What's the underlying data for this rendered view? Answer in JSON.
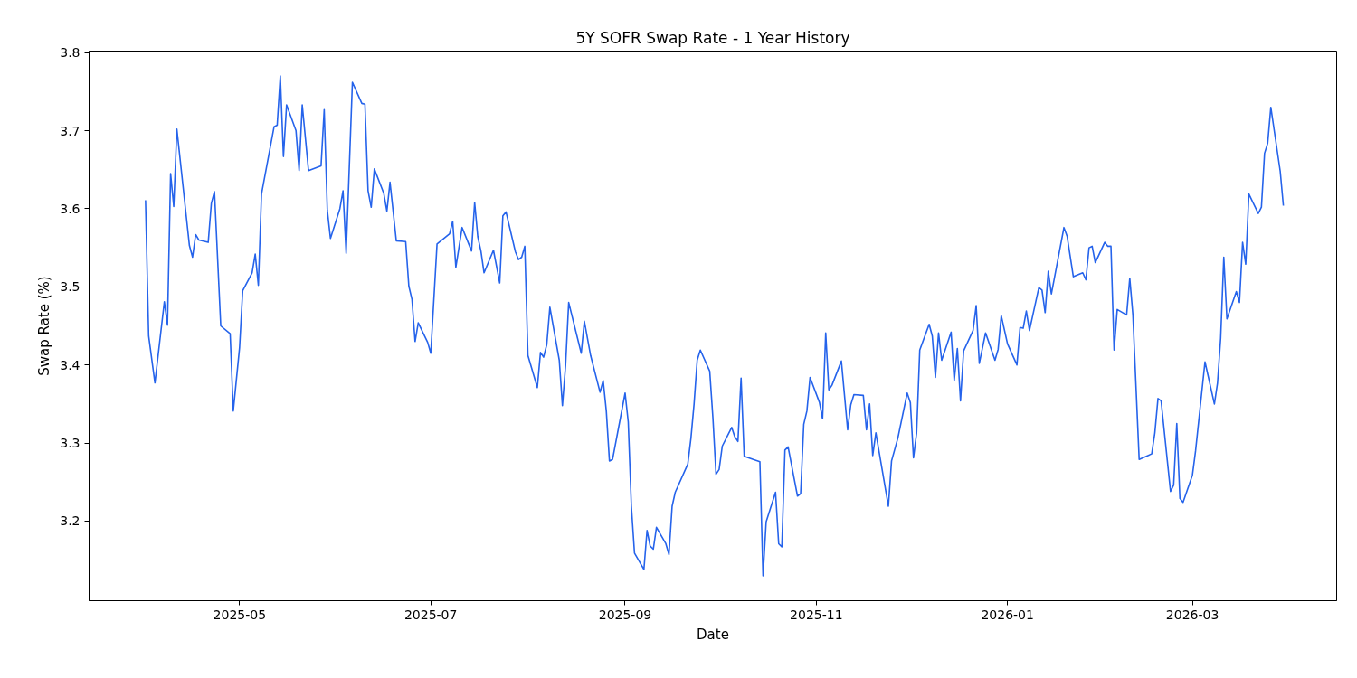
{
  "chart_data": {
    "type": "line",
    "title": "5Y SOFR Swap Rate - 1 Year History",
    "xlabel": "Date",
    "ylabel": "Swap Rate (%)",
    "xlim": [
      "2025-03-14",
      "2026-04-16"
    ],
    "ylim": [
      3.098,
      3.802
    ],
    "xticks": [
      "2025-05",
      "2025-07",
      "2025-09",
      "2025-11",
      "2026-01",
      "2026-03"
    ],
    "yticks": [
      3.2,
      3.3,
      3.4,
      3.5,
      3.6,
      3.7,
      3.8
    ],
    "grid": false,
    "marker": "none",
    "line_style": "solid",
    "series": [
      {
        "color": "#2563eb",
        "x": [
          "2025-04-01",
          "2025-04-02",
          "2025-04-04",
          "2025-04-07",
          "2025-04-08",
          "2025-04-09",
          "2025-04-10",
          "2025-04-11",
          "2025-04-15",
          "2025-04-16",
          "2025-04-17",
          "2025-04-18",
          "2025-04-21",
          "2025-04-22",
          "2025-04-23",
          "2025-04-25",
          "2025-04-28",
          "2025-04-29",
          "2025-05-01",
          "2025-05-02",
          "2025-05-05",
          "2025-05-06",
          "2025-05-07",
          "2025-05-08",
          "2025-05-12",
          "2025-05-13",
          "2025-05-14",
          "2025-05-15",
          "2025-05-16",
          "2025-05-19",
          "2025-05-20",
          "2025-05-21",
          "2025-05-23",
          "2025-05-27",
          "2025-05-28",
          "2025-05-29",
          "2025-05-30",
          "2025-06-02",
          "2025-06-03",
          "2025-06-04",
          "2025-06-06",
          "2025-06-09",
          "2025-06-10",
          "2025-06-11",
          "2025-06-12",
          "2025-06-13",
          "2025-06-16",
          "2025-06-17",
          "2025-06-18",
          "2025-06-20",
          "2025-06-23",
          "2025-06-24",
          "2025-06-25",
          "2025-06-26",
          "2025-06-27",
          "2025-06-30",
          "2025-07-01",
          "2025-07-03",
          "2025-07-07",
          "2025-07-08",
          "2025-07-09",
          "2025-07-11",
          "2025-07-14",
          "2025-07-15",
          "2025-07-16",
          "2025-07-17",
          "2025-07-18",
          "2025-07-21",
          "2025-07-23",
          "2025-07-24",
          "2025-07-25",
          "2025-07-28",
          "2025-07-29",
          "2025-07-30",
          "2025-07-31",
          "2025-08-01",
          "2025-08-04",
          "2025-08-05",
          "2025-08-06",
          "2025-08-07",
          "2025-08-08",
          "2025-08-11",
          "2025-08-12",
          "2025-08-13",
          "2025-08-14",
          "2025-08-18",
          "2025-08-19",
          "2025-08-21",
          "2025-08-24",
          "2025-08-25",
          "2025-08-26",
          "2025-08-27",
          "2025-08-28",
          "2025-09-01",
          "2025-09-02",
          "2025-09-03",
          "2025-09-04",
          "2025-09-07",
          "2025-09-08",
          "2025-09-09",
          "2025-09-10",
          "2025-09-11",
          "2025-09-14",
          "2025-09-15",
          "2025-09-16",
          "2025-09-17",
          "2025-09-21",
          "2025-09-22",
          "2025-09-23",
          "2025-09-24",
          "2025-09-25",
          "2025-09-28",
          "2025-09-29",
          "2025-09-30",
          "2025-10-01",
          "2025-10-02",
          "2025-10-05",
          "2025-10-06",
          "2025-10-07",
          "2025-10-08",
          "2025-10-09",
          "2025-10-14",
          "2025-10-15",
          "2025-10-16",
          "2025-10-19",
          "2025-10-20",
          "2025-10-21",
          "2025-10-22",
          "2025-10-23",
          "2025-10-26",
          "2025-10-27",
          "2025-10-28",
          "2025-10-29",
          "2025-10-30",
          "2025-11-02",
          "2025-11-03",
          "2025-11-04",
          "2025-11-05",
          "2025-11-06",
          "2025-11-09",
          "2025-11-11",
          "2025-11-12",
          "2025-11-13",
          "2025-11-16",
          "2025-11-17",
          "2025-11-18",
          "2025-11-19",
          "2025-11-20",
          "2025-11-24",
          "2025-11-25",
          "2025-11-27",
          "2025-11-30",
          "2025-12-01",
          "2025-12-02",
          "2025-12-03",
          "2025-12-04",
          "2025-12-07",
          "2025-12-08",
          "2025-12-09",
          "2025-12-10",
          "2025-12-11",
          "2025-12-14",
          "2025-12-15",
          "2025-12-16",
          "2025-12-17",
          "2025-12-18",
          "2025-12-21",
          "2025-12-22",
          "2025-12-23",
          "2025-12-25",
          "2025-12-28",
          "2025-12-29",
          "2025-12-30",
          "2026-01-01",
          "2026-01-04",
          "2026-01-05",
          "2026-01-06",
          "2026-01-07",
          "2026-01-08",
          "2026-01-11",
          "2026-01-12",
          "2026-01-13",
          "2026-01-14",
          "2026-01-15",
          "2026-01-19",
          "2026-01-20",
          "2026-01-22",
          "2026-01-25",
          "2026-01-26",
          "2026-01-27",
          "2026-01-28",
          "2026-01-29",
          "2026-02-01",
          "2026-02-02",
          "2026-02-03",
          "2026-02-04",
          "2026-02-05",
          "2026-02-08",
          "2026-02-09",
          "2026-02-10",
          "2026-02-12",
          "2026-02-16",
          "2026-02-17",
          "2026-02-18",
          "2026-02-19",
          "2026-02-22",
          "2026-02-23",
          "2026-02-24",
          "2026-02-25",
          "2026-02-26",
          "2026-03-01",
          "2026-03-02",
          "2026-03-05",
          "2026-03-08",
          "2026-03-09",
          "2026-03-10",
          "2026-03-11",
          "2026-03-12",
          "2026-03-15",
          "2026-03-16",
          "2026-03-17",
          "2026-03-18",
          "2026-03-19",
          "2026-03-22",
          "2026-03-23",
          "2026-03-24",
          "2026-03-25",
          "2026-03-26",
          "2026-03-29",
          "2026-03-30"
        ],
        "values": [
          3.611,
          3.437,
          3.377,
          3.481,
          3.451,
          3.645,
          3.603,
          3.702,
          3.553,
          3.538,
          3.567,
          3.56,
          3.557,
          3.607,
          3.622,
          3.45,
          3.44,
          3.341,
          3.422,
          3.495,
          3.518,
          3.542,
          3.502,
          3.619,
          3.705,
          3.707,
          3.77,
          3.667,
          3.733,
          3.7,
          3.649,
          3.733,
          3.649,
          3.655,
          3.727,
          3.598,
          3.562,
          3.6,
          3.623,
          3.543,
          3.762,
          3.735,
          3.734,
          3.623,
          3.602,
          3.651,
          3.62,
          3.597,
          3.634,
          3.559,
          3.558,
          3.501,
          3.484,
          3.43,
          3.454,
          3.429,
          3.415,
          3.555,
          3.568,
          3.584,
          3.525,
          3.576,
          3.546,
          3.608,
          3.564,
          3.546,
          3.518,
          3.547,
          3.505,
          3.591,
          3.596,
          3.545,
          3.535,
          3.538,
          3.552,
          3.412,
          3.371,
          3.416,
          3.41,
          3.426,
          3.474,
          3.406,
          3.348,
          3.399,
          3.48,
          3.415,
          3.456,
          3.412,
          3.365,
          3.38,
          3.341,
          3.277,
          3.279,
          3.364,
          3.327,
          3.219,
          3.159,
          3.138,
          3.188,
          3.168,
          3.164,
          3.192,
          3.171,
          3.157,
          3.219,
          3.237,
          3.273,
          3.306,
          3.35,
          3.406,
          3.419,
          3.392,
          3.333,
          3.26,
          3.266,
          3.296,
          3.32,
          3.308,
          3.302,
          3.383,
          3.283,
          3.276,
          3.13,
          3.199,
          3.237,
          3.171,
          3.167,
          3.291,
          3.295,
          3.232,
          3.235,
          3.324,
          3.341,
          3.384,
          3.352,
          3.331,
          3.441,
          3.368,
          3.374,
          3.405,
          3.317,
          3.349,
          3.362,
          3.361,
          3.317,
          3.35,
          3.284,
          3.313,
          3.219,
          3.277,
          3.306,
          3.364,
          3.352,
          3.281,
          3.313,
          3.419,
          3.452,
          3.437,
          3.384,
          3.441,
          3.406,
          3.442,
          3.38,
          3.421,
          3.354,
          3.418,
          3.444,
          3.476,
          3.402,
          3.441,
          3.406,
          3.42,
          3.463,
          3.427,
          3.4,
          3.448,
          3.447,
          3.469,
          3.444,
          3.499,
          3.496,
          3.467,
          3.52,
          3.491,
          3.576,
          3.565,
          3.513,
          3.518,
          3.509,
          3.55,
          3.552,
          3.531,
          3.557,
          3.552,
          3.552,
          3.419,
          3.471,
          3.464,
          3.511,
          3.464,
          3.279,
          3.286,
          3.313,
          3.357,
          3.354,
          3.238,
          3.246,
          3.325,
          3.229,
          3.224,
          3.259,
          3.29,
          3.404,
          3.35,
          3.377,
          3.434,
          3.538,
          3.459,
          3.494,
          3.48,
          3.557,
          3.529,
          3.619,
          3.594,
          3.602,
          3.671,
          3.684,
          3.73,
          3.648,
          3.604
        ]
      }
    ]
  }
}
